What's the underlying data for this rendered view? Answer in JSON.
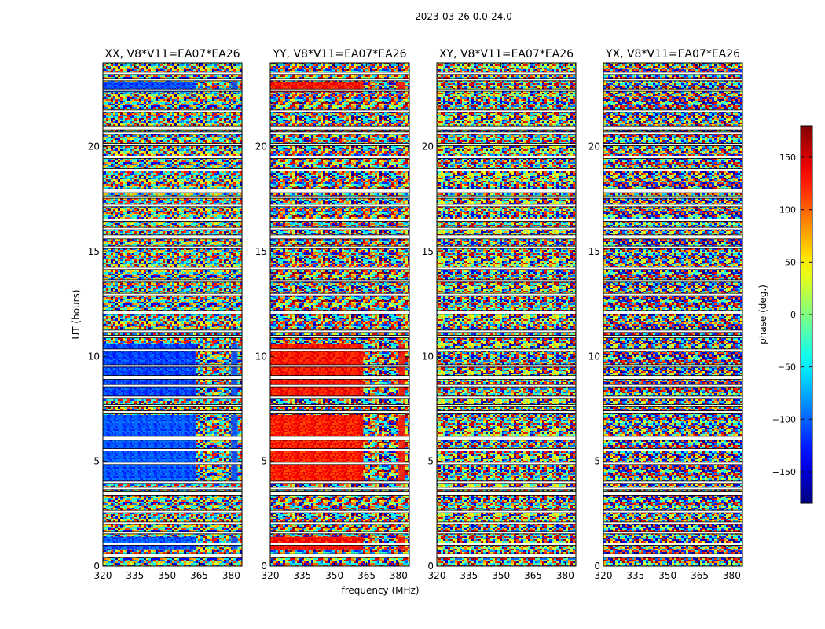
{
  "figure": {
    "suptitle": "2023-03-26 0.0-24.0"
  },
  "chart_data": {
    "type": "heatmap",
    "ylabel": "UT (hours)",
    "xlabel": "frequency (MHz)",
    "xlim": [
      320,
      385
    ],
    "ylim": [
      0,
      24
    ],
    "x_ticks": [
      320,
      335,
      350,
      365,
      380
    ],
    "y_ticks": [
      0,
      5,
      10,
      15,
      20
    ],
    "colormap": "jet",
    "panels": [
      {
        "title": "XX, V8*V11=EA07*EA26"
      },
      {
        "title": "YY, V8*V11=EA07*EA26"
      },
      {
        "title": "XY, V8*V11=EA07*EA26"
      },
      {
        "title": "YX, V8*V11=EA07*EA26"
      }
    ],
    "colorbar": {
      "label": "phase (deg.)",
      "range": [
        -180,
        180
      ],
      "ticks": [
        150,
        100,
        50,
        0,
        -50,
        -100,
        -150
      ],
      "tick_labels": [
        "150",
        "100",
        "50",
        "0",
        "−50",
        "−100",
        "−150"
      ],
      "note": "....."
    },
    "gaps_hours": [
      0.5,
      1.05,
      1.6,
      2.05,
      2.6,
      3.45,
      3.7,
      4.0,
      4.9,
      5.55,
      6.1,
      7.35,
      7.65,
      8.05,
      8.6,
      9.0,
      9.55,
      10.3,
      10.95,
      11.2,
      12.1,
      12.95,
      13.6,
      14.2,
      15.2,
      15.7,
      16.1,
      16.5,
      17.2,
      17.6,
      17.9,
      18.9,
      19.5,
      20.1,
      20.65,
      20.9,
      21.7,
      22.7,
      23.2,
      23.5
    ],
    "calibrated_blocks_hours": [
      [
        0.8,
        1.4
      ],
      [
        3.9,
        7.2
      ],
      [
        8.1,
        10.6
      ],
      [
        22.6,
        23.1
      ]
    ]
  }
}
